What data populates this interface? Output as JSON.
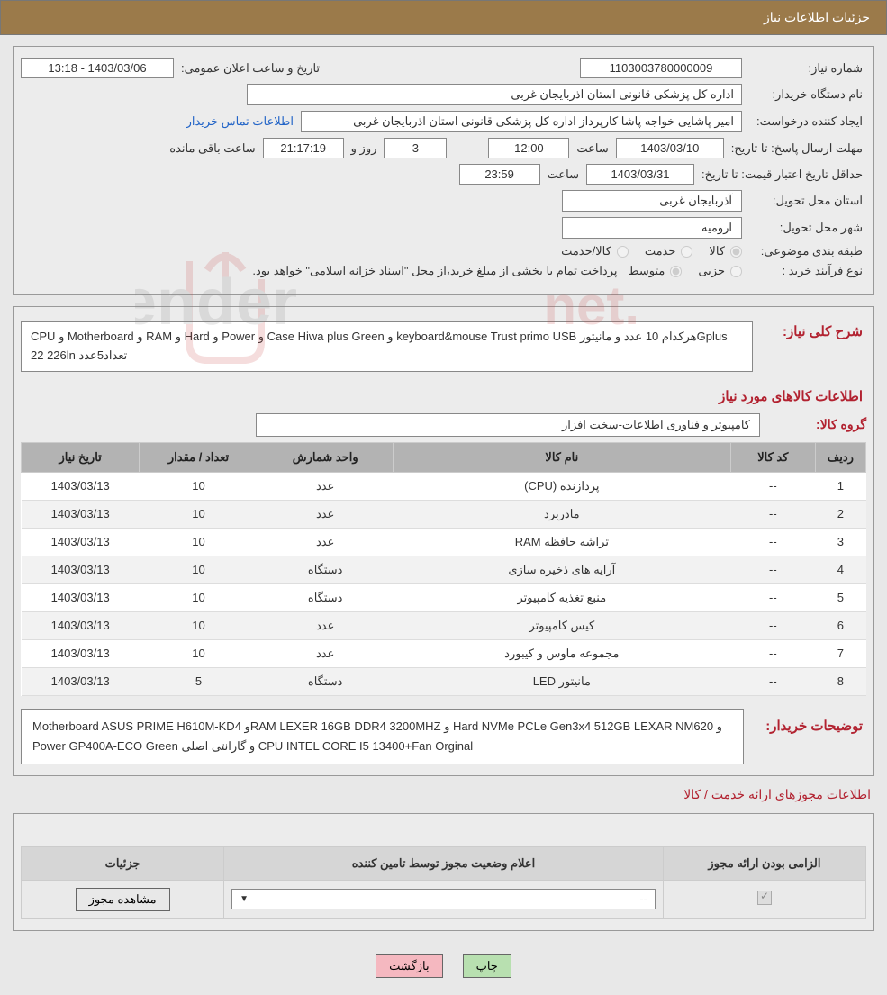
{
  "header": {
    "title": "جزئیات اطلاعات نیاز"
  },
  "fields": {
    "need_number_label": "شماره نیاز:",
    "need_number": "1103003780000009",
    "announce_label": "تاریخ و ساعت اعلان عمومی:",
    "announce_value": "1403/03/06 - 13:18",
    "buyer_org_label": "نام دستگاه خریدار:",
    "buyer_org": "اداره کل پزشکی قانونی استان اذربایجان غربی",
    "requester_label": "ایجاد کننده درخواست:",
    "requester": "امیر پاشایی خواجه پاشا کارپرداز اداره کل پزشکی قانونی استان اذربایجان غربی",
    "contact_link": "اطلاعات تماس خریدار",
    "deadline_label": "مهلت ارسال پاسخ:  تا تاریخ:",
    "deadline_date": "1403/03/10",
    "time_label": "ساعت",
    "deadline_time": "12:00",
    "days_remain": "3",
    "days_and": "روز و",
    "countdown": "21:17:19",
    "remain_label": "ساعت باقی مانده",
    "validity_label": "حداقل تاریخ اعتبار قیمت: تا تاریخ:",
    "validity_date": "1403/03/31",
    "validity_time": "23:59",
    "province_label": "استان محل تحویل:",
    "province": "آذربایجان غربی",
    "city_label": "شهر محل تحویل:",
    "city": "ارومیه",
    "category_label": "طبقه بندی موضوعی:",
    "cat_goods": "کالا",
    "cat_service": "خدمت",
    "cat_goods_service": "کالا/خدمت",
    "process_label": "نوع فرآیند خرید :",
    "proc_partial": "جزیی",
    "proc_medium": "متوسط",
    "process_note": "پرداخت تمام یا بخشی از مبلغ خرید،از محل \"اسناد خزانه اسلامی\" خواهد بود."
  },
  "need": {
    "overall_label": "شرح کلی نیاز:",
    "overall_desc": "CPU  و Motherboard و RAM و Hard و Power  و Case Hiwa plus Green و keyboard&mouse Trust primo USB هرکدام 10 عدد و مانیتورGplus 22  226ln تعداد5عدد",
    "items_title": "اطلاعات کالاهای مورد نیاز",
    "group_label": "گروه کالا:",
    "group_value": "کامپیوتر و فناوری اطلاعات-سخت افزار"
  },
  "table": {
    "columns": [
      "ردیف",
      "کد کالا",
      "نام کالا",
      "واحد شمارش",
      "تعداد / مقدار",
      "تاریخ نیاز"
    ],
    "col_widths": [
      "6%",
      "10%",
      "40%",
      "16%",
      "14%",
      "14%"
    ],
    "rows": [
      [
        "1",
        "--",
        "پردازنده (CPU)",
        "عدد",
        "10",
        "1403/03/13"
      ],
      [
        "2",
        "--",
        "مادربرد",
        "عدد",
        "10",
        "1403/03/13"
      ],
      [
        "3",
        "--",
        "تراشه حافظه RAM",
        "عدد",
        "10",
        "1403/03/13"
      ],
      [
        "4",
        "--",
        "آرایه های ذخیره سازی",
        "دستگاه",
        "10",
        "1403/03/13"
      ],
      [
        "5",
        "--",
        "منبع تغذیه کامپیوتر",
        "دستگاه",
        "10",
        "1403/03/13"
      ],
      [
        "6",
        "--",
        "کیس کامپیوتر",
        "عدد",
        "10",
        "1403/03/13"
      ],
      [
        "7",
        "--",
        "مجموعه ماوس و کیبورد",
        "عدد",
        "10",
        "1403/03/13"
      ],
      [
        "8",
        "--",
        "مانیتور LED",
        "دستگاه",
        "5",
        "1403/03/13"
      ]
    ]
  },
  "buyer_desc": {
    "label": "توضیحات خریدار:",
    "text": "Motherboard ASUS PRIME H610M-KD4 وRAM LEXER 16GB DDR4 3200MHZ و Hard NVMe PCLe Gen3x4 512GB  LEXAR NM620 و Power GP400A-ECO Green و گارانتی اصلی  CPU INTEL CORE I5 13400+Fan Orginal"
  },
  "license": {
    "section_title": "اطلاعات مجوزهای ارائه خدمت / کالا",
    "col_required": "الزامی بودن ارائه مجوز",
    "col_status": "اعلام وضعیت مجوز توسط تامین کننده",
    "col_details": "جزئیات",
    "select_value": "--",
    "view_btn": "مشاهده مجوز"
  },
  "buttons": {
    "print": "چاپ",
    "back": "بازگشت"
  },
  "watermark": {
    "text": "AriaTender.net",
    "color": "#c94b4b"
  }
}
